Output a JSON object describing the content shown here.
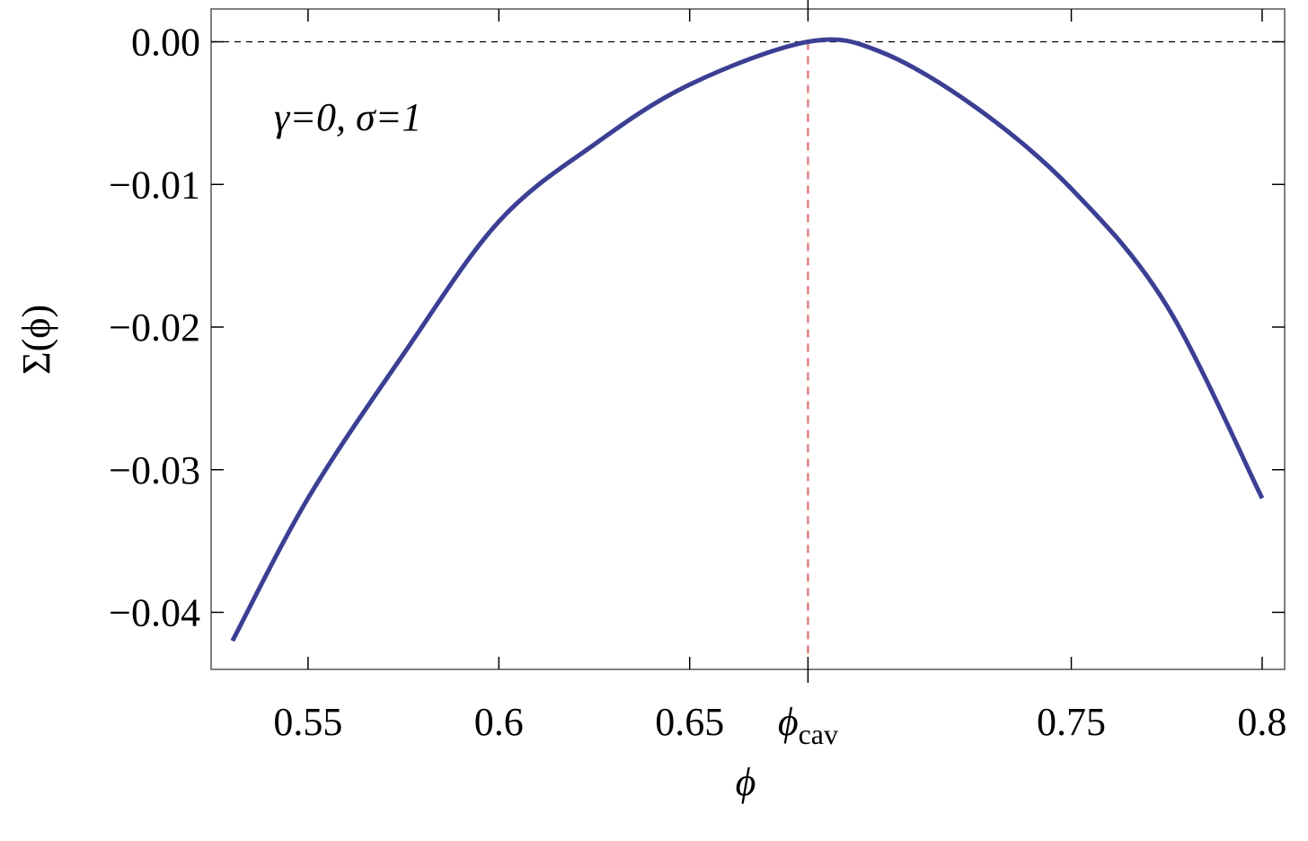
{
  "chart_data": {
    "type": "line",
    "xlabel": "ϕ",
    "ylabel": "Σ(ϕ)",
    "annotation": "γ=0, σ=1",
    "x": [
      0.5302,
      0.55,
      0.575,
      0.6,
      0.625,
      0.65,
      0.681,
      0.7,
      0.725,
      0.75,
      0.775,
      0.8
    ],
    "series": [
      {
        "name": "Σ(ϕ)",
        "color": "#3b3f94",
        "values": [
          -0.042,
          -0.032,
          -0.0219,
          -0.0126,
          -0.0072,
          -0.003,
          0,
          -0.0007,
          -0.0046,
          -0.0103,
          -0.0185,
          -0.032
        ]
      }
    ],
    "xlim": [
      0.5246,
      0.8059
    ],
    "ylim": [
      -0.044,
      0.0023
    ],
    "xticks": [
      0.55,
      0.6,
      0.65,
      {
        "value": 0.681,
        "label": "ϕ",
        "subscript": "cav"
      },
      0.75,
      0.8
    ],
    "yticks": [
      {
        "value": 0,
        "label": "0.00"
      },
      {
        "value": -0.01,
        "label": "−0.01"
      },
      {
        "value": -0.02,
        "label": "−0.02"
      },
      {
        "value": -0.03,
        "label": "−0.03"
      },
      {
        "value": -0.04,
        "label": "−0.04"
      }
    ],
    "hline": {
      "value": 0,
      "color": "#000"
    },
    "vline": {
      "value": 0.681,
      "color": "#e08080"
    },
    "grid": false
  }
}
